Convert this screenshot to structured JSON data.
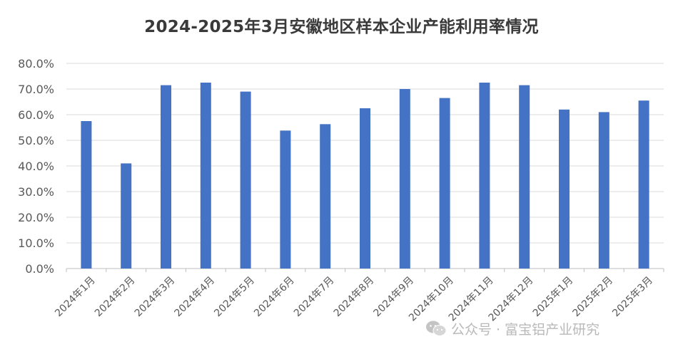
{
  "chart_data": {
    "type": "bar",
    "title": "2024-2025年3月安徽地区样本企业产能利用率情况",
    "categories": [
      "2024年1月",
      "2024年2月",
      "2024年3月",
      "2024年4月",
      "2024年5月",
      "2024年6月",
      "2024年7月",
      "2024年8月",
      "2024年9月",
      "2024年10月",
      "2024年11月",
      "2024年12月",
      "2025年1月",
      "2025年2月",
      "2025年3月"
    ],
    "values": [
      57.5,
      41.0,
      71.5,
      72.5,
      69.0,
      53.8,
      56.3,
      62.5,
      70.0,
      66.5,
      72.5,
      71.5,
      62.0,
      61.0,
      65.5
    ],
    "ylim": [
      0,
      80
    ],
    "yticks": [
      "0.0%",
      "10.0%",
      "20.0%",
      "30.0%",
      "40.0%",
      "50.0%",
      "60.0%",
      "70.0%",
      "80.0%"
    ],
    "grid": true,
    "legend": "none",
    "bar_color": "#4472C4",
    "xlabel": "",
    "ylabel": ""
  },
  "watermark": {
    "icon": "wechat-icon",
    "text": "公众号 · 富宝铝产业研究"
  }
}
